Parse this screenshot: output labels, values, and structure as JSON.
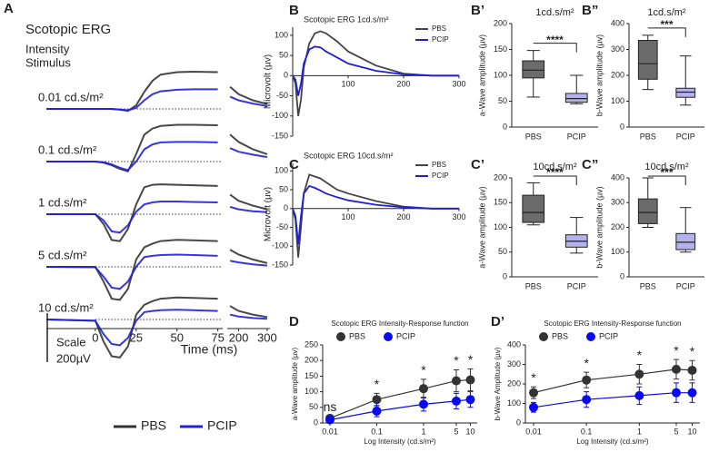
{
  "chart_data": [
    {
      "type": "line",
      "panel": "A",
      "title": "Scotopic ERG",
      "subtitle": [
        "Intensity",
        "Stimulus"
      ],
      "x": [
        -30,
        0,
        5,
        10,
        15,
        20,
        25,
        30,
        35,
        40,
        50,
        60,
        75,
        170,
        200,
        250,
        300
      ],
      "xlim": [
        -30,
        78
      ],
      "xlim2": [
        160,
        310
      ],
      "xticks": [
        0,
        25,
        50,
        75
      ],
      "x2ticks": [
        200,
        300
      ],
      "xlabel": "Time (ms)",
      "scale_label": "Scale",
      "scale_value": 200,
      "scale_value_label": "200µV",
      "legend": [
        {
          "name": "PBS",
          "color": "#333333"
        },
        {
          "name": "PCIP",
          "color": "#1f1fe0"
        }
      ],
      "rows": [
        {
          "label": "0.01 cd.s/m²",
          "series": [
            {
              "name": "PBS",
              "color": "#333333",
              "values": [
                0,
                0,
                0,
                0,
                -3,
                -8,
                15,
                70,
                115,
                140,
                150,
                152,
                150,
                90,
                60,
                35,
                20
              ]
            },
            {
              "name": "PCIP",
              "color": "#1f1fe0",
              "values": [
                0,
                0,
                0,
                0,
                -3,
                -6,
                5,
                35,
                60,
                72,
                78,
                80,
                80,
                50,
                35,
                22,
                12
              ]
            }
          ]
        },
        {
          "label": "0.1 cd.s/m²",
          "series": [
            {
              "name": "PBS",
              "color": "#333333",
              "values": [
                0,
                0,
                -5,
                -15,
                -30,
                -40,
                30,
                110,
                135,
                145,
                150,
                150,
                148,
                110,
                80,
                50,
                30
              ]
            },
            {
              "name": "PCIP",
              "color": "#1f1fe0",
              "values": [
                0,
                0,
                -3,
                -12,
                -25,
                -35,
                0,
                50,
                70,
                78,
                80,
                80,
                78,
                55,
                40,
                28,
                18
              ]
            }
          ]
        },
        {
          "label": "1 cd.s/m²",
          "series": [
            {
              "name": "PBS",
              "color": "#333333",
              "values": [
                0,
                0,
                -40,
                -105,
                -110,
                -60,
                40,
                110,
                120,
                122,
                120,
                118,
                115,
                80,
                55,
                35,
                20
              ]
            },
            {
              "name": "PCIP",
              "color": "#1f1fe0",
              "values": [
                0,
                0,
                -25,
                -70,
                -75,
                -45,
                10,
                40,
                48,
                52,
                52,
                50,
                48,
                30,
                20,
                12,
                8
              ]
            }
          ]
        },
        {
          "label": "5 cd.s/m²",
          "series": [
            {
              "name": "PBS",
              "color": "#333333",
              "values": [
                0,
                0,
                -60,
                -130,
                -135,
                -90,
                30,
                80,
                95,
                105,
                110,
                108,
                105,
                70,
                50,
                30,
                15
              ]
            },
            {
              "name": "PCIP",
              "color": "#1f1fe0",
              "values": [
                0,
                -2,
                -40,
                -85,
                -90,
                -60,
                0,
                40,
                45,
                48,
                50,
                48,
                45,
                25,
                18,
                10,
                5
              ]
            }
          ]
        },
        {
          "label": "10 cd.s/m²",
          "series": [
            {
              "name": "PBS",
              "color": "#333333",
              "values": [
                0,
                -5,
                -90,
                -150,
                -155,
                -110,
                20,
                60,
                75,
                85,
                90,
                88,
                85,
                55,
                35,
                20,
                10
              ]
            },
            {
              "name": "PCIP",
              "color": "#1f1fe0",
              "values": [
                0,
                -5,
                -60,
                -100,
                -105,
                -75,
                -5,
                30,
                35,
                38,
                40,
                38,
                35,
                20,
                12,
                6,
                3
              ]
            }
          ]
        }
      ]
    },
    {
      "type": "line",
      "panel": "B",
      "title": "Scotopic ERG 1cd.s/m²",
      "ylabel": "Microvolt (µv)",
      "x": [
        0,
        5,
        10,
        15,
        20,
        30,
        40,
        50,
        60,
        80,
        100,
        150,
        200,
        250,
        300
      ],
      "xlim": [
        0,
        300
      ],
      "xticks": [
        100,
        200,
        300
      ],
      "ylim": [
        -150,
        120
      ],
      "yticks": [
        -150,
        -100,
        -50,
        0,
        50,
        100
      ],
      "series": [
        {
          "name": "PBS",
          "color": "#444444",
          "values": [
            0,
            -20,
            -100,
            -60,
            20,
            80,
            105,
            110,
            105,
            85,
            60,
            25,
            5,
            0,
            0
          ]
        },
        {
          "name": "PCIP",
          "color": "#1f1fe0",
          "values": [
            0,
            -10,
            -50,
            -20,
            30,
            65,
            72,
            70,
            60,
            45,
            30,
            12,
            3,
            0,
            0
          ]
        }
      ]
    },
    {
      "type": "line",
      "panel": "C",
      "title": "Scotopic ERG 10cd.s/m²",
      "ylabel": "Microvolt (µv)",
      "x": [
        0,
        5,
        10,
        15,
        20,
        30,
        40,
        50,
        60,
        80,
        100,
        150,
        200,
        250,
        300
      ],
      "xlim": [
        0,
        300
      ],
      "xticks": [
        100,
        200,
        300
      ],
      "ylim": [
        -150,
        120
      ],
      "yticks": [
        -150,
        -100,
        -50,
        0,
        50,
        100
      ],
      "series": [
        {
          "name": "PBS",
          "color": "#444444",
          "values": [
            0,
            -30,
            -130,
            -50,
            40,
            90,
            85,
            80,
            70,
            50,
            40,
            20,
            5,
            0,
            0
          ]
        },
        {
          "name": "PCIP",
          "color": "#1f1fe0",
          "values": [
            0,
            -20,
            -95,
            -20,
            40,
            60,
            55,
            48,
            40,
            30,
            22,
            10,
            3,
            0,
            0
          ]
        }
      ]
    },
    {
      "type": "box",
      "panel": "B’",
      "title": "1cd.s/m²",
      "ylabel": "a-Wave amplitude (µv)",
      "significance": "****",
      "categories": [
        "PBS",
        "PCIP"
      ],
      "colors": [
        "#6b6b6b",
        "#b4b2ec"
      ],
      "ylim": [
        0,
        200
      ],
      "yticks": [
        0,
        50,
        100,
        150,
        200
      ],
      "stats": [
        {
          "min": 58,
          "q1": 95,
          "median": 110,
          "q3": 128,
          "max": 148
        },
        {
          "min": 45,
          "q1": 48,
          "median": 55,
          "q3": 65,
          "max": 100
        }
      ]
    },
    {
      "type": "box",
      "panel": "B”",
      "title": "1cd.s/m²",
      "ylabel": "b-Wave amplitude (µv)",
      "significance": "***",
      "categories": [
        "PBS",
        "PCIP"
      ],
      "colors": [
        "#6b6b6b",
        "#b4b2ec"
      ],
      "ylim": [
        0,
        400
      ],
      "yticks": [
        0,
        100,
        200,
        300,
        400
      ],
      "stats": [
        {
          "min": 145,
          "q1": 185,
          "median": 245,
          "q3": 335,
          "max": 355
        },
        {
          "min": 85,
          "q1": 115,
          "median": 135,
          "q3": 150,
          "max": 275
        }
      ]
    },
    {
      "type": "box",
      "panel": "C’",
      "title": "10cd.s/m²",
      "ylabel": "a-Wave amplitude (µv)",
      "significance": "****",
      "categories": [
        "PBS",
        "PCIP"
      ],
      "colors": [
        "#6b6b6b",
        "#b4b2ec"
      ],
      "ylim": [
        0,
        200
      ],
      "yticks": [
        0,
        50,
        100,
        150,
        200
      ],
      "stats": [
        {
          "min": 105,
          "q1": 110,
          "median": 130,
          "q3": 165,
          "max": 190
        },
        {
          "min": 48,
          "q1": 60,
          "median": 72,
          "q3": 85,
          "max": 120
        }
      ]
    },
    {
      "type": "box",
      "panel": "C”",
      "title": "10cd.s/m²",
      "ylabel": "b-Wave amplitude (µv)",
      "significance": "***",
      "categories": [
        "PBS",
        "PCIP"
      ],
      "colors": [
        "#6b6b6b",
        "#b4b2ec"
      ],
      "ylim": [
        0,
        400
      ],
      "yticks": [
        0,
        100,
        200,
        300,
        400
      ],
      "stats": [
        {
          "min": 200,
          "q1": 215,
          "median": 260,
          "q3": 315,
          "max": 400
        },
        {
          "min": 100,
          "q1": 110,
          "median": 140,
          "q3": 175,
          "max": 280
        }
      ]
    },
    {
      "type": "line",
      "panel": "D",
      "title": "Scotopic ERG Intensity-Response function",
      "ylabel": "a-Wave amplitude (µv)",
      "xlabel": "Log Intensity (cd.s/m²)",
      "xscale": "log",
      "markers": true,
      "x": [
        0.01,
        0.1,
        1,
        5,
        10
      ],
      "xlim": [
        0.007,
        14
      ],
      "xticks": [
        0.01,
        0.1,
        1,
        5,
        10
      ],
      "ylim": [
        0,
        250
      ],
      "yticks": [
        0,
        50,
        100,
        150,
        200,
        250
      ],
      "annotations": [
        "ns",
        "*",
        "*",
        "*",
        "*"
      ],
      "series": [
        {
          "name": "PBS",
          "color": "#333333",
          "values": [
            15,
            75,
            110,
            135,
            138
          ],
          "errors": [
            8,
            20,
            30,
            35,
            35
          ]
        },
        {
          "name": "PCIP",
          "color": "#0a0af0",
          "values": [
            10,
            38,
            60,
            70,
            75
          ],
          "errors": [
            5,
            18,
            22,
            25,
            25
          ]
        }
      ]
    },
    {
      "type": "line",
      "panel": "D’",
      "title": "Scotopic ERG Intensity-Response function",
      "ylabel": "b-Wave Amplitude (µv)",
      "xlabel": "Log Intensity (cd.s/m²)",
      "xscale": "log",
      "markers": true,
      "x": [
        0.01,
        0.1,
        1,
        5,
        10
      ],
      "xlim": [
        0.007,
        14
      ],
      "xticks": [
        0.01,
        0.1,
        1,
        5,
        10
      ],
      "ylim": [
        0,
        400
      ],
      "yticks": [
        0,
        100,
        200,
        300,
        400
      ],
      "annotations": [
        "*",
        "*",
        "*",
        "*",
        "*"
      ],
      "series": [
        {
          "name": "PBS",
          "color": "#333333",
          "values": [
            155,
            220,
            250,
            275,
            270
          ],
          "errors": [
            30,
            40,
            50,
            50,
            50
          ]
        },
        {
          "name": "PCIP",
          "color": "#0a0af0",
          "values": [
            80,
            120,
            140,
            155,
            155
          ],
          "errors": [
            25,
            40,
            45,
            50,
            50
          ]
        }
      ]
    }
  ]
}
